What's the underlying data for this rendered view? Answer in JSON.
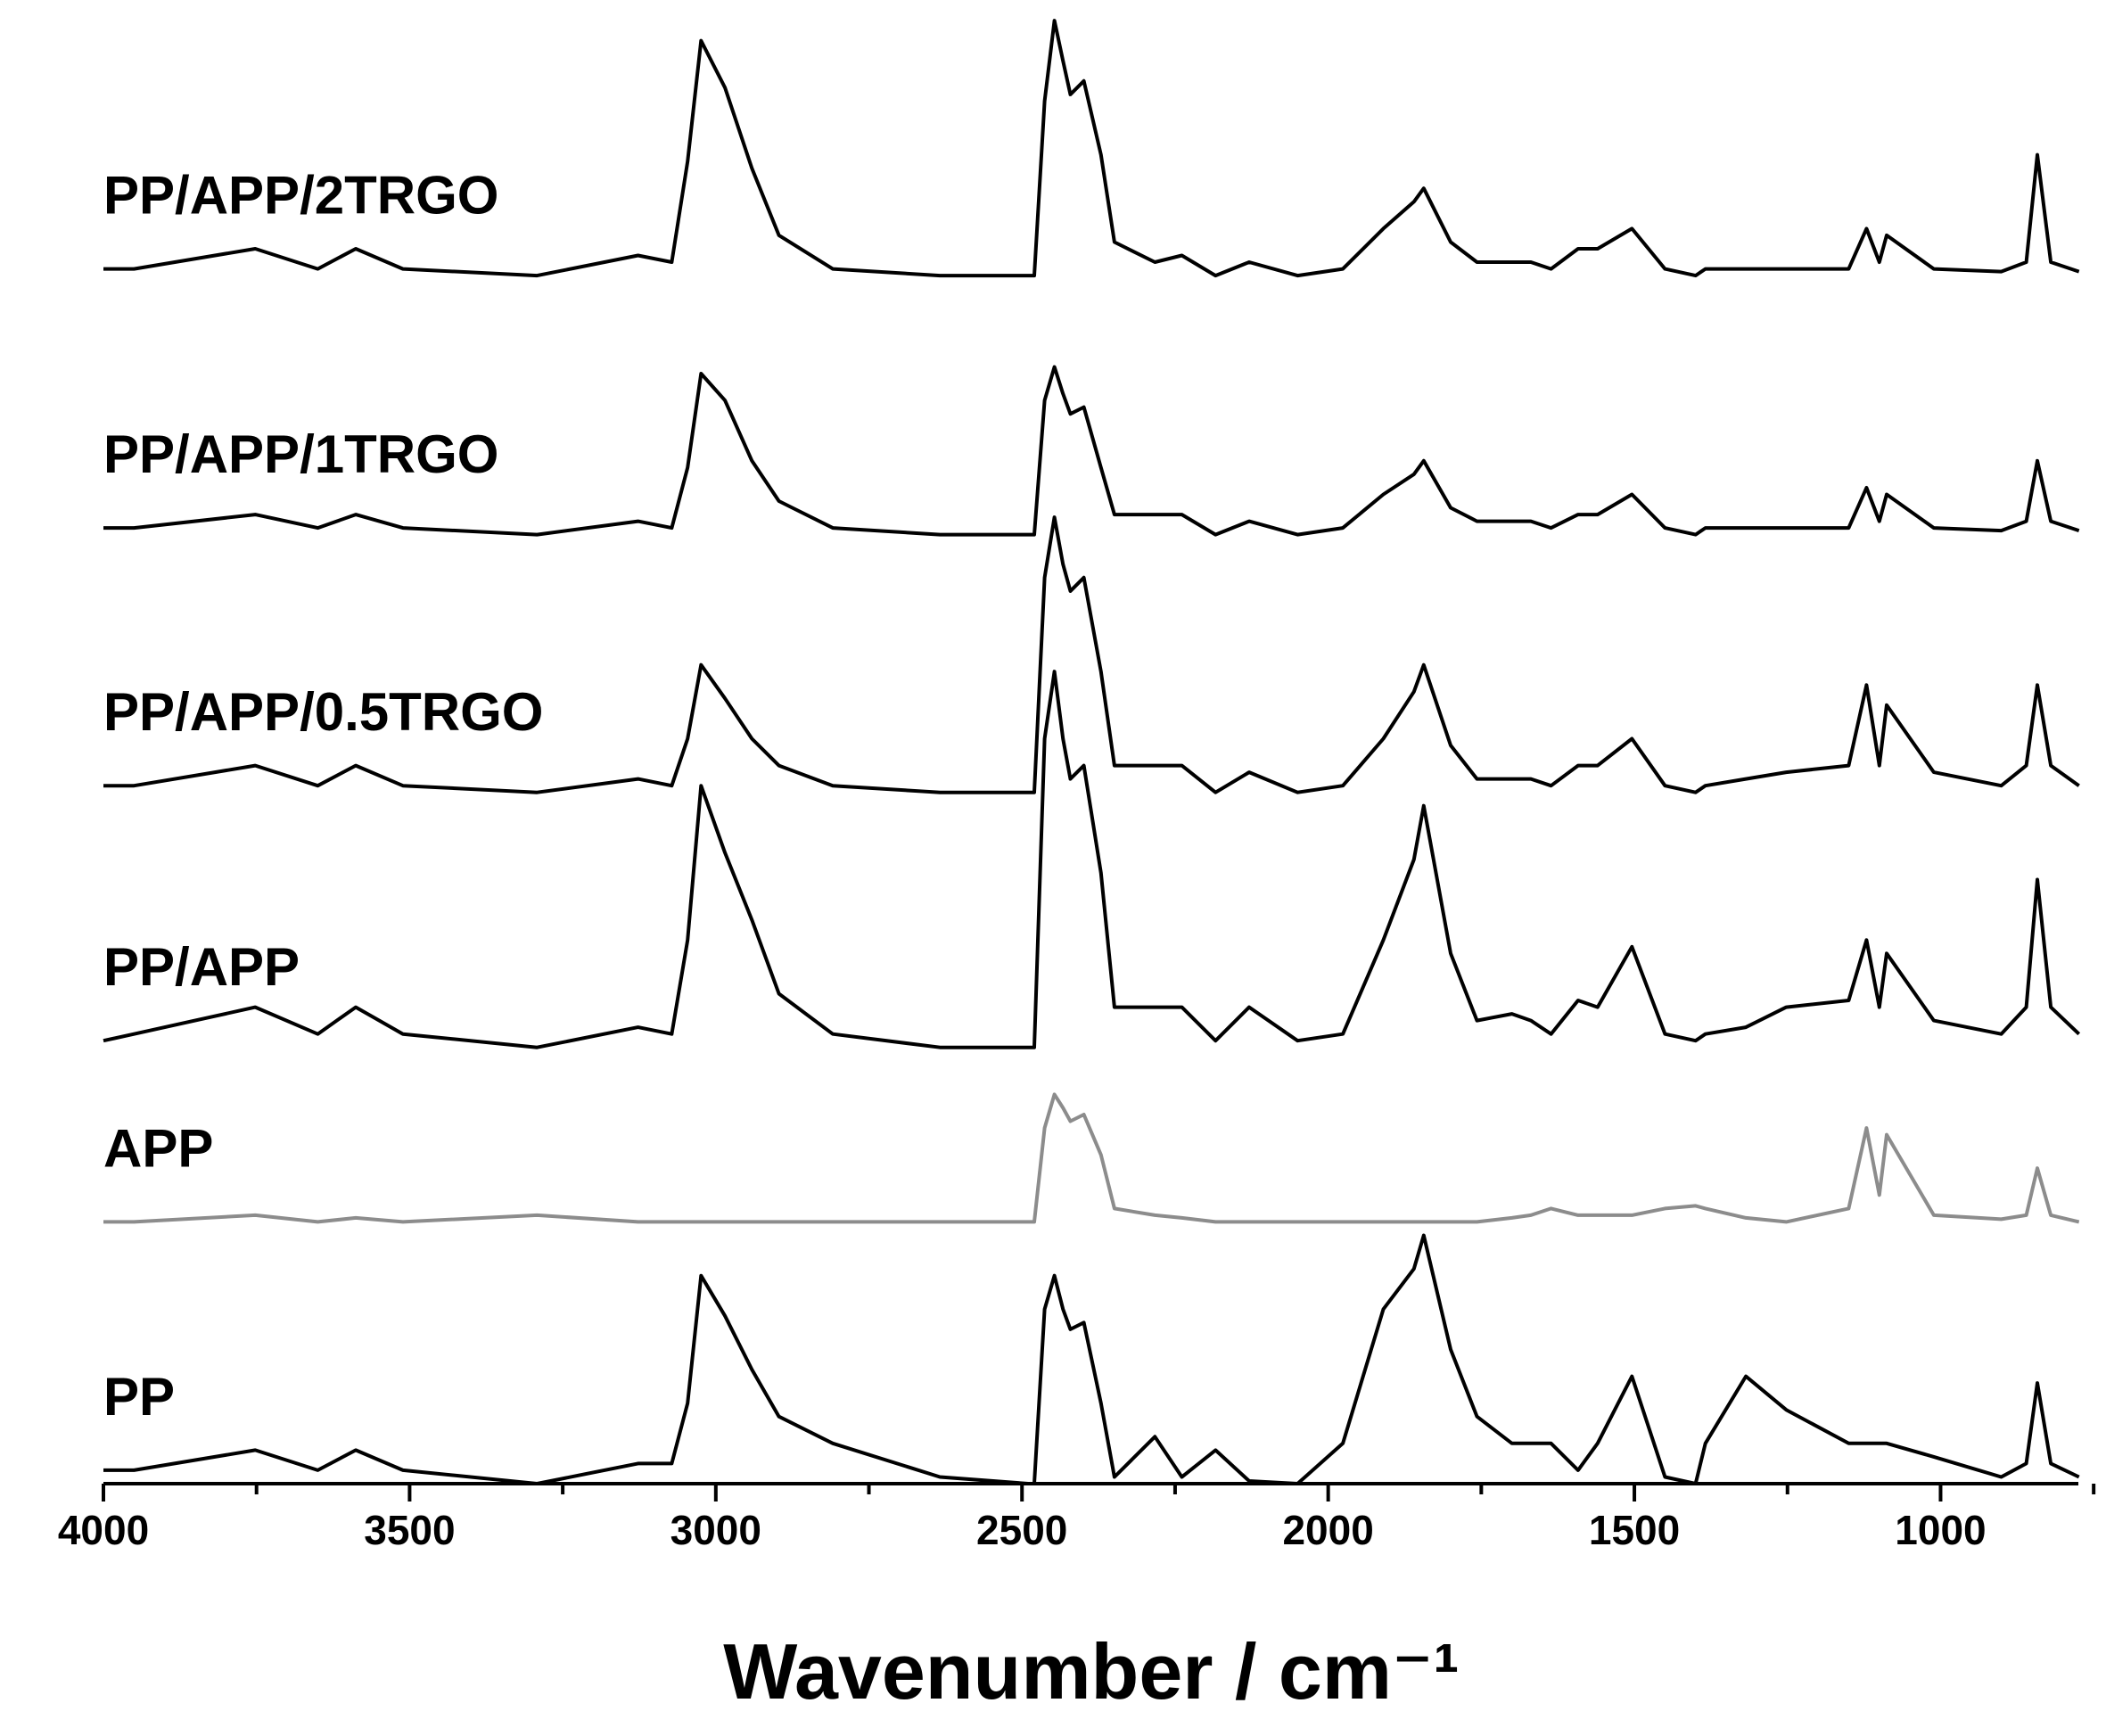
{
  "chart_data": {
    "type": "line",
    "x_label": "Wavenumber / cm⁻¹",
    "xlim": [
      4000,
      775
    ],
    "xticks": [
      4000,
      3500,
      3000,
      2500,
      2000,
      1500,
      1000
    ],
    "xminor_ticks": [
      3750,
      3250,
      2750,
      2250,
      1750,
      1250,
      750
    ],
    "ylim": [
      0,
      11
    ],
    "x": [
      4000,
      3950,
      3752,
      3650,
      3588,
      3511,
      3292,
      3127,
      3072,
      3046,
      3024,
      2985,
      2941,
      2897,
      2809,
      2634,
      2490,
      2480,
      2463,
      2447,
      2433,
      2421,
      2399,
      2371,
      2349,
      2283,
      2239,
      2184,
      2129,
      2050,
      1976,
      1910,
      1860,
      1844,
      1800,
      1757,
      1700,
      1669,
      1636,
      1592,
      1560,
      1504,
      1450,
      1400,
      1384,
      1318,
      1252,
      1150,
      1121,
      1100,
      1088,
      1011,
      901,
      860,
      842,
      820,
      774
    ],
    "series": [
      {
        "name": "PP/APP/2TRGO",
        "color": "#000000",
        "values": [
          9.05,
          9.05,
          9.2,
          9.05,
          9.2,
          9.05,
          9,
          9.15,
          9.1,
          9.85,
          10.75,
          10.4,
          9.8,
          9.3,
          9.05,
          9,
          9,
          9,
          10.3,
          10.9,
          10.6,
          10.35,
          10.45,
          9.9,
          9.25,
          9.1,
          9.15,
          9,
          9.1,
          9,
          9.05,
          9.35,
          9.55,
          9.65,
          9.25,
          9.1,
          9.1,
          9.1,
          9.05,
          9.2,
          9.2,
          9.35,
          9.05,
          9,
          9.05,
          9.05,
          9.05,
          9.05,
          9.35,
          9.1,
          9.3,
          9.05,
          9.03,
          9.1,
          9.9,
          9.1,
          9.03
        ]
      },
      {
        "name": "PP/APP/1TRGO",
        "color": "#000000",
        "values": [
          7.12,
          7.12,
          7.22,
          7.12,
          7.22,
          7.12,
          7.07,
          7.17,
          7.12,
          7.57,
          8.27,
          8.07,
          7.62,
          7.32,
          7.12,
          7.07,
          7.07,
          7.07,
          8.07,
          8.32,
          8.12,
          7.97,
          8.02,
          7.57,
          7.22,
          7.22,
          7.22,
          7.07,
          7.17,
          7.07,
          7.12,
          7.37,
          7.52,
          7.62,
          7.27,
          7.17,
          7.17,
          7.17,
          7.12,
          7.22,
          7.22,
          7.37,
          7.12,
          7.07,
          7.12,
          7.12,
          7.12,
          7.12,
          7.42,
          7.17,
          7.37,
          7.12,
          7.1,
          7.17,
          7.62,
          7.17,
          7.1
        ]
      },
      {
        "name": "PP/APP/0.5TRGO",
        "color": "#000000",
        "values": [
          5.2,
          5.2,
          5.35,
          5.2,
          5.35,
          5.2,
          5.15,
          5.25,
          5.2,
          5.55,
          6.1,
          5.85,
          5.55,
          5.35,
          5.2,
          5.15,
          5.15,
          5.15,
          6.75,
          7.2,
          6.85,
          6.65,
          6.75,
          6.05,
          5.35,
          5.35,
          5.35,
          5.15,
          5.3,
          5.15,
          5.2,
          5.55,
          5.9,
          6.1,
          5.5,
          5.25,
          5.25,
          5.25,
          5.2,
          5.35,
          5.35,
          5.55,
          5.2,
          5.15,
          5.2,
          5.25,
          5.3,
          5.35,
          5.95,
          5.35,
          5.8,
          5.3,
          5.2,
          5.35,
          5.95,
          5.35,
          5.2
        ]
      },
      {
        "name": "PP/APP",
        "color": "#000000",
        "values": [
          3.3,
          3.35,
          3.55,
          3.35,
          3.55,
          3.35,
          3.25,
          3.4,
          3.35,
          4.05,
          5.2,
          4.7,
          4.2,
          3.65,
          3.35,
          3.25,
          3.25,
          3.25,
          5.55,
          6.05,
          5.55,
          5.25,
          5.35,
          4.55,
          3.55,
          3.55,
          3.55,
          3.3,
          3.55,
          3.3,
          3.35,
          4.05,
          4.65,
          5.05,
          3.95,
          3.45,
          3.5,
          3.45,
          3.35,
          3.6,
          3.55,
          4.0,
          3.35,
          3.3,
          3.35,
          3.4,
          3.55,
          3.6,
          4.05,
          3.55,
          3.95,
          3.45,
          3.35,
          3.55,
          4.5,
          3.55,
          3.35
        ]
      },
      {
        "name": "APP",
        "color": "#8c8c8c",
        "values": [
          1.95,
          1.95,
          2,
          1.95,
          1.98,
          1.95,
          2,
          1.95,
          1.95,
          1.95,
          1.95,
          1.95,
          1.95,
          1.95,
          1.95,
          1.95,
          1.95,
          1.95,
          2.65,
          2.9,
          2.8,
          2.7,
          2.75,
          2.45,
          2.05,
          2,
          1.98,
          1.95,
          1.95,
          1.95,
          1.95,
          1.95,
          1.95,
          1.95,
          1.95,
          1.95,
          1.98,
          2,
          2.05,
          2,
          2,
          2,
          2.05,
          2.07,
          2.05,
          1.98,
          1.95,
          2.05,
          2.65,
          2.15,
          2.6,
          2,
          1.97,
          2,
          2.35,
          2,
          1.95
        ]
      },
      {
        "name": "PP",
        "color": "#000000",
        "values": [
          0.1,
          0.1,
          0.25,
          0.1,
          0.25,
          0.1,
          0,
          0.15,
          0.15,
          0.6,
          1.55,
          1.25,
          0.85,
          0.5,
          0.3,
          0.05,
          0,
          0,
          1.3,
          1.55,
          1.3,
          1.15,
          1.2,
          0.6,
          0.05,
          0.35,
          0.05,
          0.25,
          0.02,
          0,
          0.3,
          1.3,
          1.6,
          1.85,
          1.0,
          0.5,
          0.3,
          0.3,
          0.3,
          0.1,
          0.3,
          0.8,
          0.05,
          0,
          0.3,
          0.8,
          0.55,
          0.3,
          0.3,
          0.3,
          0.3,
          0.2,
          0.05,
          0.15,
          0.75,
          0.15,
          0.05
        ]
      }
    ]
  }
}
